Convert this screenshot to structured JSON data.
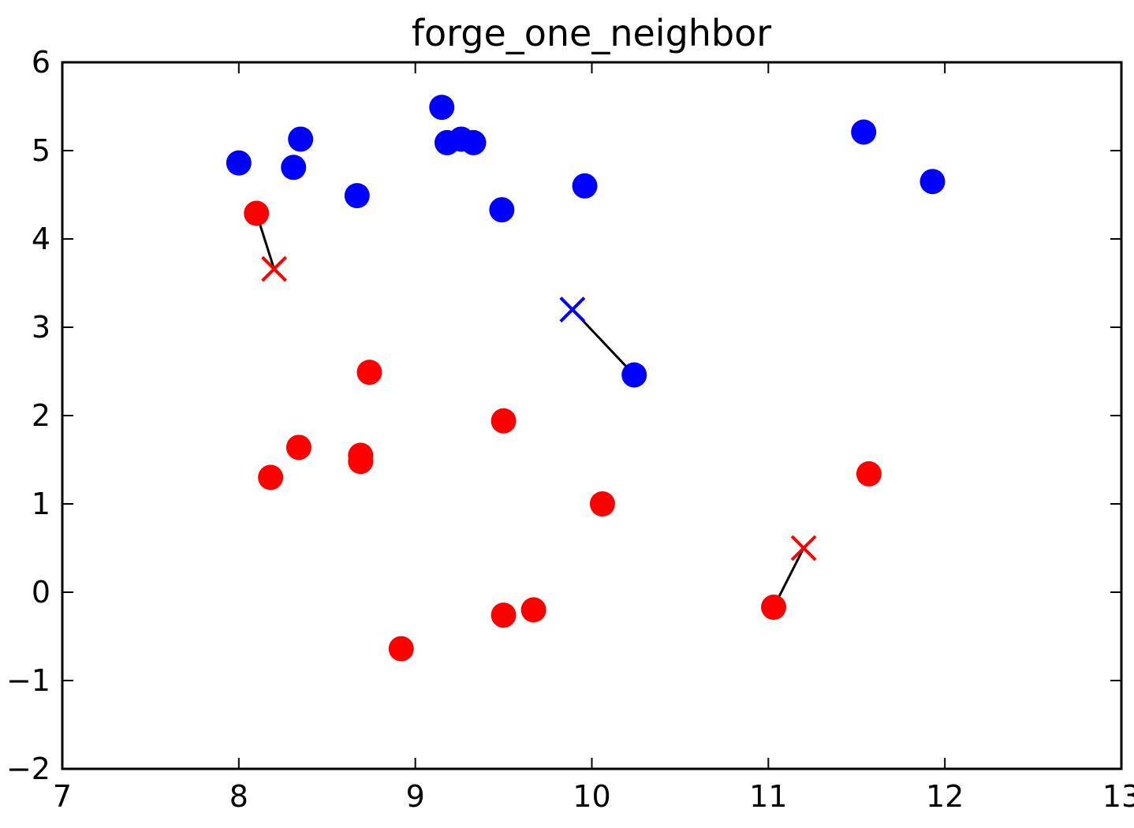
{
  "chart_data": {
    "type": "scatter",
    "title": "forge_one_neighbor",
    "xlabel": "",
    "ylabel": "",
    "xlim": [
      7,
      13
    ],
    "ylim": [
      -2,
      6
    ],
    "xticks": [
      7,
      8,
      9,
      10,
      11,
      12,
      13
    ],
    "yticks": [
      -2,
      -1,
      0,
      1,
      2,
      3,
      4,
      5,
      6
    ],
    "xtick_labels": [
      "7",
      "8",
      "9",
      "10",
      "11",
      "12",
      "13"
    ],
    "ytick_labels": [
      "−2",
      "−1",
      "0",
      "1",
      "2",
      "3",
      "4",
      "5",
      "6"
    ],
    "grid": false,
    "colors": {
      "blue": "#0000ff",
      "red": "#ff0000",
      "line": "#000000"
    },
    "series": [
      {
        "marker": "circle",
        "color": "#0000ff",
        "points": [
          [
            8.0,
            4.86
          ],
          [
            8.31,
            4.81
          ],
          [
            8.35,
            5.13
          ],
          [
            8.67,
            4.49
          ],
          [
            9.15,
            5.49
          ],
          [
            9.18,
            5.09
          ],
          [
            9.26,
            5.13
          ],
          [
            9.33,
            5.09
          ],
          [
            9.49,
            4.33
          ],
          [
            9.96,
            4.6
          ],
          [
            10.24,
            2.46
          ],
          [
            11.54,
            5.21
          ],
          [
            11.93,
            4.65
          ]
        ]
      },
      {
        "marker": "circle",
        "color": "#ff0000",
        "points": [
          [
            8.1,
            4.29
          ],
          [
            8.74,
            2.49
          ],
          [
            8.34,
            1.64
          ],
          [
            8.18,
            1.3
          ],
          [
            8.69,
            1.55
          ],
          [
            8.69,
            1.48
          ],
          [
            9.5,
            1.94
          ],
          [
            10.06,
            1.0
          ],
          [
            11.57,
            1.34
          ],
          [
            11.03,
            -0.17
          ],
          [
            9.5,
            -0.26
          ],
          [
            9.67,
            -0.2
          ],
          [
            8.92,
            -0.64
          ]
        ]
      },
      {
        "marker": "x",
        "color": "#0000ff",
        "points": [
          [
            9.89,
            3.2
          ]
        ]
      },
      {
        "marker": "x",
        "color": "#ff0000",
        "points": [
          [
            8.2,
            3.66
          ],
          [
            11.2,
            0.5
          ]
        ]
      }
    ],
    "segments": [
      {
        "from": [
          8.1,
          4.29
        ],
        "to": [
          8.2,
          3.66
        ]
      },
      {
        "from": [
          10.24,
          2.46
        ],
        "to": [
          9.89,
          3.2
        ]
      },
      {
        "from": [
          11.03,
          -0.17
        ],
        "to": [
          11.2,
          0.5
        ]
      }
    ]
  }
}
